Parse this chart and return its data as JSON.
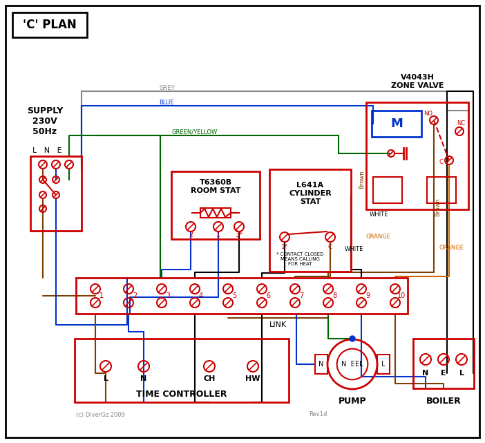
{
  "bg_color": "#ffffff",
  "red": "#cc0000",
  "blue": "#0033cc",
  "green": "#006600",
  "grey": "#888888",
  "brown": "#7b3f00",
  "orange": "#cc6600",
  "black": "#000000",
  "title": "'C' PLAN",
  "supply_label": "SUPPLY\n230V\n50Hz",
  "zone_valve_label": "V4043H\nZONE VALVE",
  "room_stat_label": "T6360B\nROOM STAT",
  "cyl_stat_label": "L641A\nCYLINDER\nSTAT",
  "time_ctrl_label": "TIME CONTROLLER",
  "pump_label": "PUMP",
  "boiler_label": "BOILER",
  "link_label": "LINK",
  "copyright": "(c) DiverGz 2009",
  "rev": "Rev1d"
}
